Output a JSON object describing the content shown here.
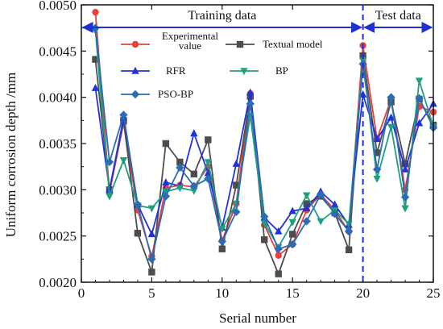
{
  "chart_data": {
    "type": "line",
    "xlabel": "Serial number",
    "ylabel": "Uniform corrosion depth  /mm",
    "xlim": [
      0,
      25
    ],
    "ylim": [
      0.002,
      0.005
    ],
    "x_ticks": [
      "0",
      "5",
      "10",
      "15",
      "20",
      "25"
    ],
    "y_ticks": [
      "0.0020",
      "0.0025",
      "0.0030",
      "0.0035",
      "0.0040",
      "0.0045",
      "0.0050"
    ],
    "split_at": 20,
    "regions": [
      {
        "label": "Training data",
        "from": 0,
        "to": 20
      },
      {
        "label": "Test data",
        "from": 20,
        "to": 25
      }
    ],
    "x": [
      1,
      2,
      3,
      4,
      5,
      6,
      7,
      8,
      9,
      10,
      11,
      12,
      13,
      14,
      15,
      16,
      17,
      18,
      19,
      20,
      21,
      22,
      23,
      24,
      25
    ],
    "series": [
      {
        "name": "Experimental value",
        "color": "#e8413c",
        "marker": "circle",
        "values": [
          0.00492,
          0.00297,
          0.00372,
          0.00278,
          0.00228,
          0.00302,
          0.00305,
          0.00303,
          0.00325,
          0.00245,
          0.00285,
          0.00404,
          0.00262,
          0.00229,
          0.00241,
          0.00278,
          0.00295,
          0.00278,
          0.00255,
          0.00456,
          0.00355,
          0.00398,
          0.003,
          0.0039,
          0.00384
        ]
      },
      {
        "name": "Textual model",
        "color": "#4d4d4d",
        "marker": "square",
        "values": [
          0.00441,
          0.003,
          0.00375,
          0.00253,
          0.00211,
          0.0035,
          0.0033,
          0.00317,
          0.00354,
          0.00236,
          0.00305,
          0.00401,
          0.00246,
          0.00209,
          0.00252,
          0.00285,
          0.00293,
          0.00275,
          0.00235,
          0.00445,
          0.0034,
          0.00395,
          0.00328,
          0.00398,
          0.0037
        ]
      },
      {
        "name": "RFR",
        "color": "#2332d6",
        "marker": "triangle-up",
        "values": [
          0.0041,
          0.003,
          0.00378,
          0.00284,
          0.00252,
          0.00308,
          0.00304,
          0.00361,
          0.00318,
          0.00259,
          0.00328,
          0.00405,
          0.0027,
          0.00255,
          0.00277,
          0.0028,
          0.00298,
          0.00284,
          0.00262,
          0.00403,
          0.00355,
          0.00378,
          0.00322,
          0.00372,
          0.00393
        ]
      },
      {
        "name": "BP",
        "color": "#1e9f7f",
        "marker": "triangle-down",
        "values": [
          0.00472,
          0.00293,
          0.00332,
          0.00283,
          0.0028,
          0.00298,
          0.00302,
          0.00299,
          0.0033,
          0.00258,
          0.00285,
          0.0038,
          0.00264,
          0.00238,
          0.00265,
          0.00294,
          0.00266,
          0.00278,
          0.00263,
          0.0044,
          0.00312,
          0.00368,
          0.0028,
          0.00418,
          0.00368
        ]
      },
      {
        "name": "PSO-BP",
        "color": "#2b6cb8",
        "marker": "diamond",
        "values": [
          0.00475,
          0.0033,
          0.00381,
          0.00284,
          0.00225,
          0.00293,
          0.00324,
          0.00304,
          0.00312,
          0.00244,
          0.00276,
          0.00393,
          0.00271,
          0.00236,
          0.00241,
          0.00266,
          0.00295,
          0.00274,
          0.00255,
          0.00436,
          0.00322,
          0.004,
          0.00292,
          0.00399,
          0.00367
        ]
      }
    ]
  }
}
